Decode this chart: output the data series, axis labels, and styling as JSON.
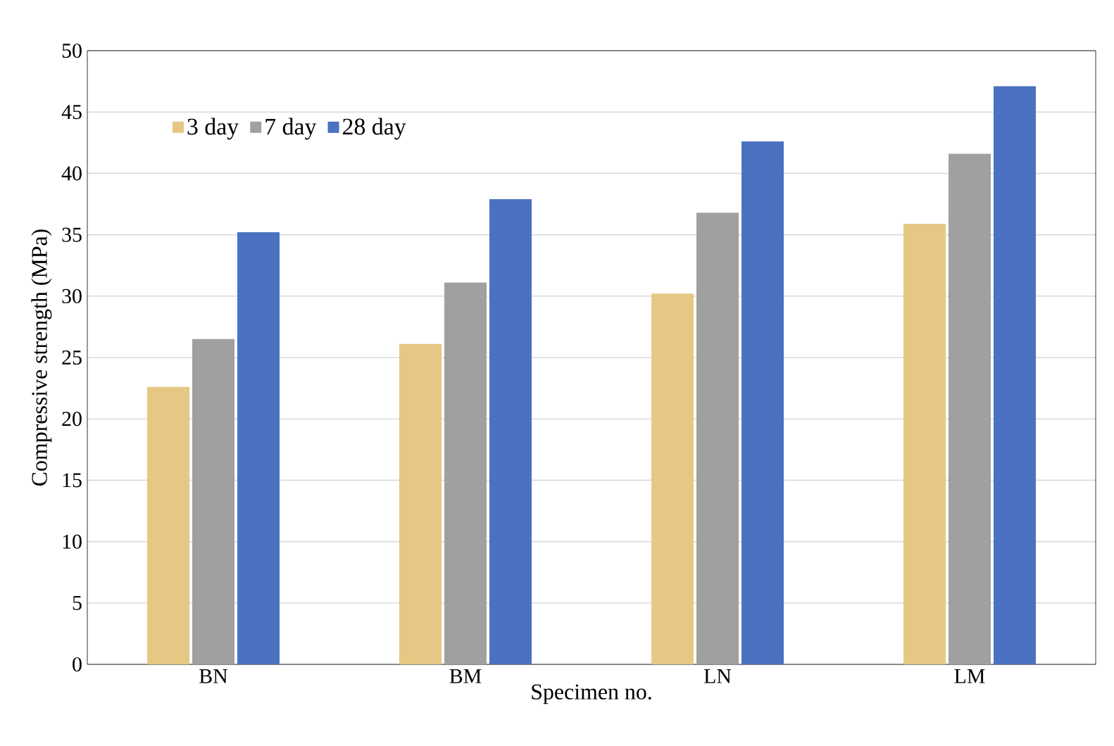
{
  "chart_data": {
    "type": "bar",
    "xlabel": "Specimen no.",
    "ylabel": "Compressive strength (MPa)",
    "categories": [
      "BN",
      "BM",
      "LN",
      "LM"
    ],
    "series": [
      {
        "name": "3 day",
        "color": "#e6c884",
        "values": [
          22.6,
          26.1,
          30.2,
          35.9
        ]
      },
      {
        "name": "7 day",
        "color": "#a0a0a0",
        "values": [
          26.5,
          31.1,
          36.8,
          41.6
        ]
      },
      {
        "name": "28 day",
        "color": "#4a72c0",
        "values": [
          35.2,
          37.9,
          42.6,
          47.1
        ]
      }
    ],
    "ylim": [
      0,
      50
    ],
    "yticks": [
      0,
      5,
      10,
      15,
      20,
      25,
      30,
      35,
      40,
      45,
      50
    ],
    "grid": "y",
    "legend": "top left"
  }
}
